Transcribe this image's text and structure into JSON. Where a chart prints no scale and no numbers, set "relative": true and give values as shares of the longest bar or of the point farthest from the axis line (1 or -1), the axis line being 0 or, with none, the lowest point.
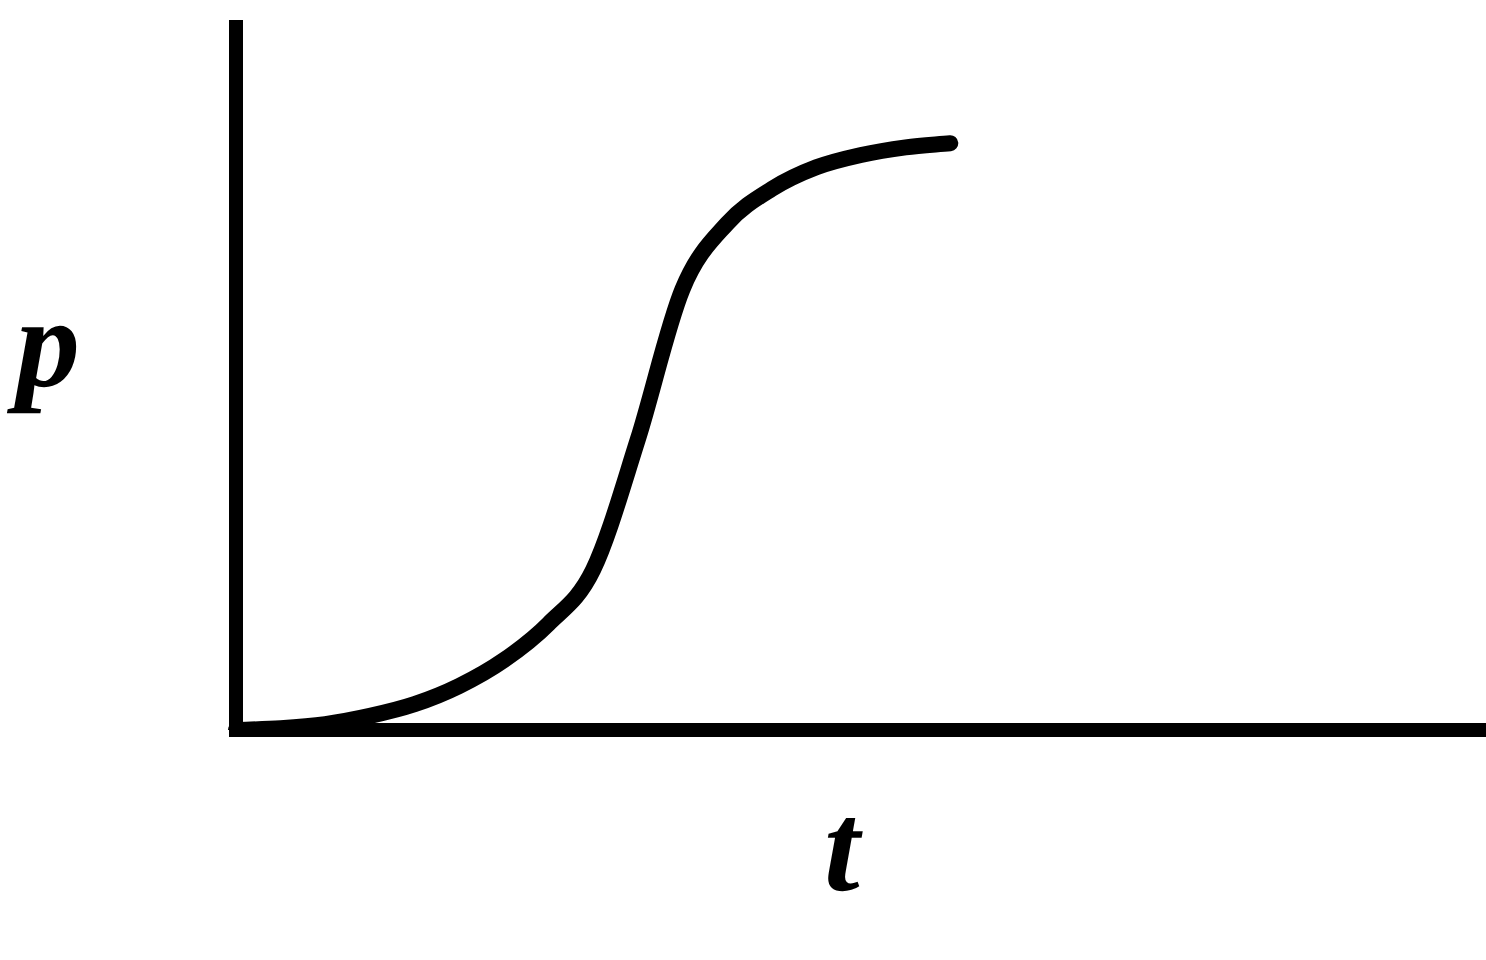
{
  "chart_data": {
    "type": "line",
    "xlabel": "t",
    "ylabel": "p",
    "relative": true,
    "marker": "none",
    "legend": false,
    "categories": [
      null,
      null,
      null,
      null,
      null,
      null,
      null,
      null,
      null,
      null,
      null,
      null,
      null,
      null,
      null,
      null,
      null,
      null,
      null,
      null,
      null,
      null,
      null,
      null,
      null,
      null,
      null,
      null,
      null
    ],
    "series": [
      {
        "color": "#000000",
        "values": [
          0,
          0.003,
          0.01,
          0.024,
          0.044,
          0.075,
          0.119,
          0.181,
          0.273,
          0.495,
          0.751,
          0.863,
          0.922,
          0.959,
          0.98,
          0.993,
          1,
          null,
          null,
          null,
          null,
          null,
          null,
          null,
          null,
          null,
          null,
          null,
          null
        ]
      }
    ]
  }
}
